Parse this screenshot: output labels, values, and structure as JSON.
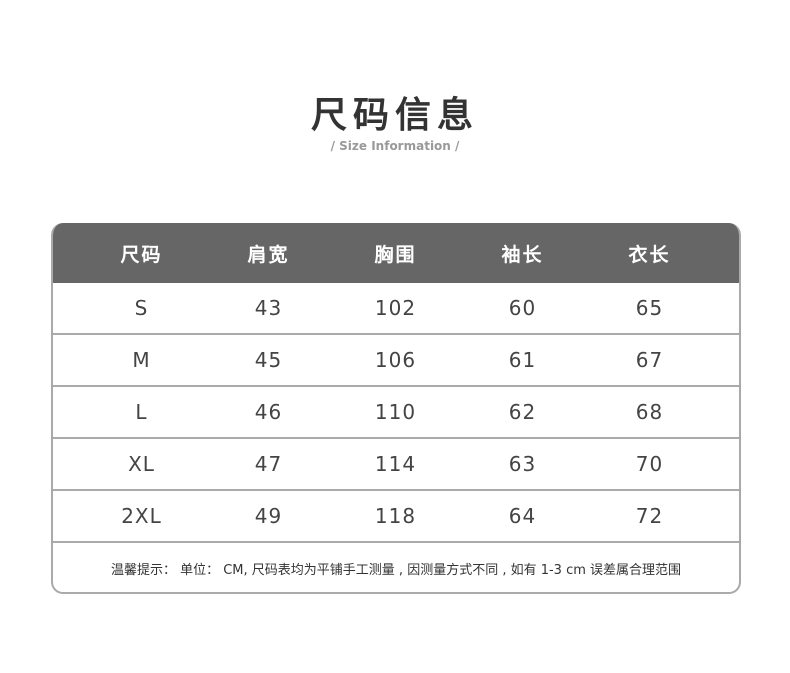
{
  "title": "尺码信息",
  "subtitle": "/ Size Information /",
  "table": {
    "headers": [
      "尺码",
      "肩宽",
      "胸围",
      "袖长",
      "衣长"
    ],
    "rows": [
      [
        "S",
        "43",
        "102",
        "60",
        "65"
      ],
      [
        "M",
        "45",
        "106",
        "61",
        "67"
      ],
      [
        "L",
        "46",
        "110",
        "62",
        "68"
      ],
      [
        "XL",
        "47",
        "114",
        "63",
        "70"
      ],
      [
        "2XL",
        "49",
        "118",
        "64",
        "72"
      ]
    ]
  },
  "note": "温馨提示： 单位： CM, 尺码表均为平铺手工测量 , 因测量方式不同 , 如有 1-3 cm 误差属合理范围"
}
